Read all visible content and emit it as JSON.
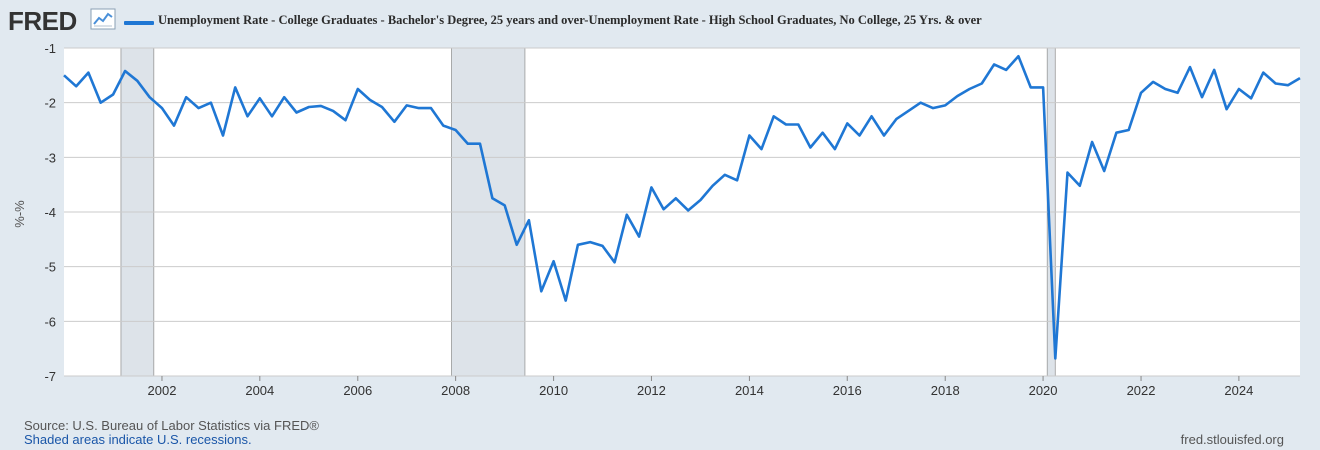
{
  "header": {
    "logo_text": "FRED",
    "logo_icon": "line-chart-icon"
  },
  "colors": {
    "series": "#1f77d4",
    "recession": "#dde3e9",
    "plot_bg": "#ffffff",
    "grid": "#cbcbcb",
    "page_bg": "#e1e9f0"
  },
  "chart_data": {
    "type": "line",
    "ylabel": "%-%",
    "ylim": [
      -7,
      -1
    ],
    "yticks": [
      -1,
      -2,
      -3,
      -4,
      -5,
      -6,
      -7
    ],
    "xlim": [
      "2000-01-01",
      "2025-04-01"
    ],
    "xticks": [
      "2002",
      "2004",
      "2006",
      "2008",
      "2010",
      "2012",
      "2014",
      "2016",
      "2018",
      "2020",
      "2022",
      "2024"
    ],
    "grid": true,
    "legend": "top-left",
    "recessions": [
      {
        "start": "2001-03-01",
        "end": "2001-11-01"
      },
      {
        "start": "2007-12-01",
        "end": "2009-06-01"
      },
      {
        "start": "2020-02-01",
        "end": "2020-04-01"
      }
    ],
    "series": [
      {
        "name": "Unemployment Rate - College Graduates - Bachelor's Degree, 25 years and over-Unemployment Rate - High School Graduates, No College, 25 Yrs. & over",
        "x": [
          "2000-01-01",
          "2000-04-01",
          "2000-07-01",
          "2000-10-01",
          "2001-01-01",
          "2001-04-01",
          "2001-07-01",
          "2001-10-01",
          "2002-01-01",
          "2002-04-01",
          "2002-07-01",
          "2002-10-01",
          "2003-01-01",
          "2003-04-01",
          "2003-07-01",
          "2003-10-01",
          "2004-01-01",
          "2004-04-01",
          "2004-07-01",
          "2004-10-01",
          "2005-01-01",
          "2005-04-01",
          "2005-07-01",
          "2005-10-01",
          "2006-01-01",
          "2006-04-01",
          "2006-07-01",
          "2006-10-01",
          "2007-01-01",
          "2007-04-01",
          "2007-07-01",
          "2007-10-01",
          "2008-01-01",
          "2008-04-01",
          "2008-07-01",
          "2008-10-01",
          "2009-01-01",
          "2009-04-01",
          "2009-07-01",
          "2009-10-01",
          "2010-01-01",
          "2010-04-01",
          "2010-07-01",
          "2010-10-01",
          "2011-01-01",
          "2011-04-01",
          "2011-07-01",
          "2011-10-01",
          "2012-01-01",
          "2012-04-01",
          "2012-07-01",
          "2012-10-01",
          "2013-01-01",
          "2013-04-01",
          "2013-07-01",
          "2013-10-01",
          "2014-01-01",
          "2014-04-01",
          "2014-07-01",
          "2014-10-01",
          "2015-01-01",
          "2015-04-01",
          "2015-07-01",
          "2015-10-01",
          "2016-01-01",
          "2016-04-01",
          "2016-07-01",
          "2016-10-01",
          "2017-01-01",
          "2017-04-01",
          "2017-07-01",
          "2017-10-01",
          "2018-01-01",
          "2018-04-01",
          "2018-07-01",
          "2018-10-01",
          "2019-01-01",
          "2019-04-01",
          "2019-07-01",
          "2019-10-01",
          "2020-01-01",
          "2020-04-01",
          "2020-07-01",
          "2020-10-01",
          "2021-01-01",
          "2021-04-01",
          "2021-07-01",
          "2021-10-01",
          "2022-01-01",
          "2022-04-01",
          "2022-07-01",
          "2022-10-01",
          "2023-01-01",
          "2023-04-01",
          "2023-07-01",
          "2023-10-01",
          "2024-01-01",
          "2024-04-01",
          "2024-07-01",
          "2024-10-01",
          "2025-01-01",
          "2025-04-01"
        ],
        "values": [
          -1.5,
          -1.7,
          -1.45,
          -2.0,
          -1.85,
          -1.42,
          -1.6,
          -1.9,
          -2.1,
          -2.42,
          -1.9,
          -2.1,
          -2.0,
          -2.6,
          -1.72,
          -2.25,
          -1.92,
          -2.25,
          -1.9,
          -2.18,
          -2.08,
          -2.06,
          -2.15,
          -2.32,
          -1.75,
          -1.95,
          -2.08,
          -2.35,
          -2.05,
          -2.1,
          -2.1,
          -2.42,
          -2.5,
          -2.75,
          -2.75,
          -3.75,
          -3.88,
          -4.6,
          -4.15,
          -5.45,
          -4.9,
          -5.62,
          -4.6,
          -4.55,
          -4.62,
          -4.92,
          -4.05,
          -4.45,
          -3.55,
          -3.95,
          -3.75,
          -3.97,
          -3.78,
          -3.52,
          -3.32,
          -3.42,
          -2.6,
          -2.85,
          -2.25,
          -2.4,
          -2.4,
          -2.82,
          -2.55,
          -2.85,
          -2.38,
          -2.6,
          -2.25,
          -2.6,
          -2.3,
          -2.15,
          -2.0,
          -2.1,
          -2.05,
          -1.88,
          -1.75,
          -1.65,
          -1.3,
          -1.4,
          -1.15,
          -1.72,
          -1.72,
          -6.68,
          -3.28,
          -3.52,
          -2.72,
          -3.25,
          -2.55,
          -2.5,
          -1.82,
          -1.62,
          -1.75,
          -1.82,
          -1.35,
          -1.9,
          -1.4,
          -2.12,
          -1.75,
          -1.92,
          -1.45,
          -1.65,
          -1.68,
          -1.55
        ]
      }
    ]
  },
  "footer": {
    "source": "Source: U.S. Bureau of Labor Statistics via FRED®",
    "recession_note": "Shaded areas indicate U.S. recessions.",
    "url": "fred.stlouisfed.org"
  }
}
